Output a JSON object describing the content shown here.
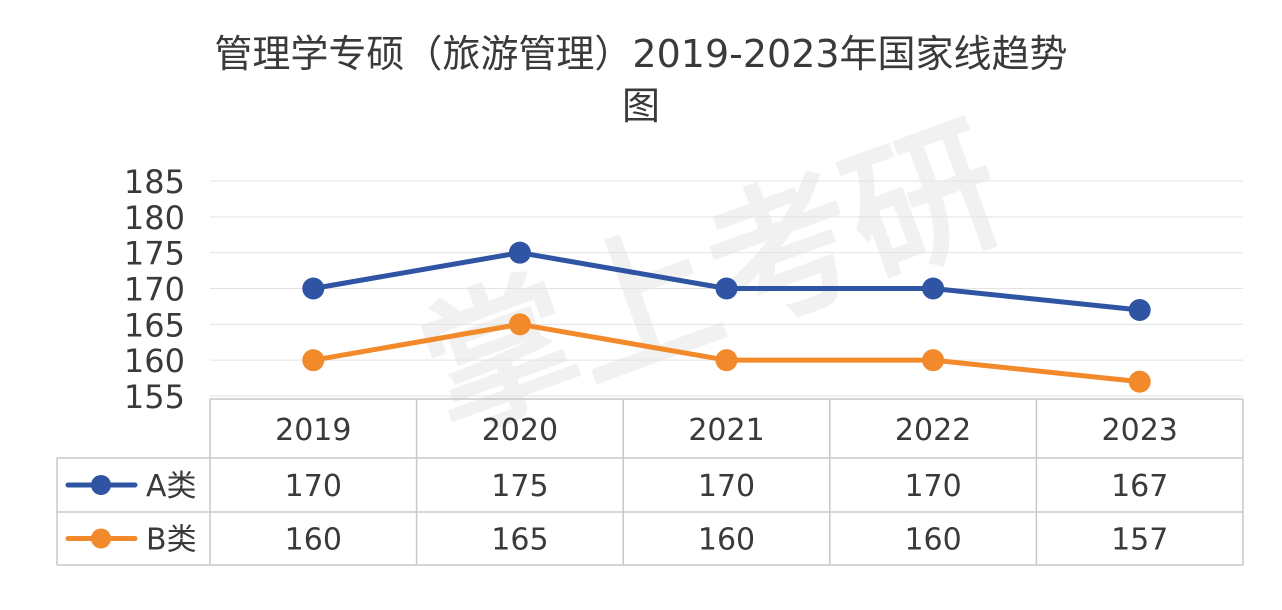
{
  "chart_data": {
    "type": "line",
    "title": "管理学专硕（旅游管理）2019-2023年国家线趋势图",
    "title_lines": [
      "管理学专硕（旅游管理）2019-2023年国家线趋势",
      "图"
    ],
    "categories": [
      "2019",
      "2020",
      "2021",
      "2022",
      "2023"
    ],
    "series": [
      {
        "name": "A类",
        "values": [
          170,
          175,
          170,
          170,
          167
        ],
        "color": "#2E54A3"
      },
      {
        "name": "B类",
        "values": [
          160,
          165,
          160,
          160,
          157
        ],
        "color": "#F28A2B"
      }
    ],
    "yticks": [
      "185",
      "180",
      "175",
      "170",
      "165",
      "160",
      "155"
    ],
    "ylim": [
      155,
      185
    ],
    "grid": true,
    "legend": "data-table",
    "watermark": "掌上考研"
  }
}
